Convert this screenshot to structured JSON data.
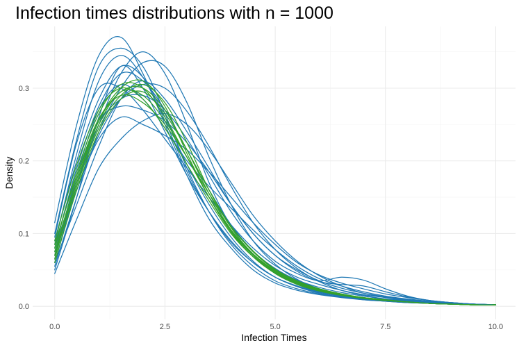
{
  "chart_data": {
    "type": "line",
    "title": "Infection times distributions with  n = 1000",
    "xlabel": "Infection Times",
    "ylabel": "Density",
    "xlim": [
      -0.5,
      10.45
    ],
    "ylim": [
      -0.018,
      0.385
    ],
    "x_ticks": [
      0.0,
      2.5,
      5.0,
      7.5,
      10.0
    ],
    "x_tick_labels": [
      "0.0",
      "2.5",
      "5.0",
      "7.5",
      "10.0"
    ],
    "y_ticks": [
      0.0,
      0.1,
      0.2,
      0.3
    ],
    "y_tick_labels": [
      "0.0",
      "0.1",
      "0.2",
      "0.3"
    ],
    "grid": true,
    "legend": "none",
    "colors": {
      "blue_series": "#1f78b4",
      "green_series": "#33a02c",
      "grid": "#ebebeb"
    },
    "x": [
      0.0,
      0.5,
      1.0,
      1.5,
      2.0,
      2.5,
      3.0,
      3.5,
      4.0,
      4.5,
      5.0,
      5.5,
      6.0,
      6.5,
      7.0,
      7.5,
      8.0,
      8.5,
      9.0,
      9.5,
      10.0
    ],
    "series": [
      {
        "color": "blue",
        "values": [
          0.05,
          0.15,
          0.26,
          0.33,
          0.3,
          0.24,
          0.18,
          0.13,
          0.09,
          0.06,
          0.04,
          0.028,
          0.02,
          0.015,
          0.011,
          0.008,
          0.006,
          0.005,
          0.004,
          0.003,
          0.002
        ]
      },
      {
        "color": "blue",
        "values": [
          0.115,
          0.25,
          0.345,
          0.37,
          0.32,
          0.25,
          0.18,
          0.12,
          0.08,
          0.05,
          0.032,
          0.022,
          0.016,
          0.012,
          0.009,
          0.007,
          0.005,
          0.004,
          0.003,
          0.002,
          0.002
        ]
      },
      {
        "color": "blue",
        "values": [
          0.1,
          0.23,
          0.33,
          0.355,
          0.33,
          0.265,
          0.19,
          0.13,
          0.085,
          0.055,
          0.035,
          0.024,
          0.017,
          0.013,
          0.01,
          0.007,
          0.005,
          0.004,
          0.003,
          0.002,
          0.002
        ]
      },
      {
        "color": "blue",
        "values": [
          0.08,
          0.17,
          0.25,
          0.32,
          0.35,
          0.32,
          0.25,
          0.17,
          0.11,
          0.07,
          0.045,
          0.03,
          0.02,
          0.014,
          0.01,
          0.008,
          0.006,
          0.004,
          0.003,
          0.003,
          0.002
        ]
      },
      {
        "color": "blue",
        "values": [
          0.06,
          0.14,
          0.22,
          0.285,
          0.31,
          0.285,
          0.24,
          0.19,
          0.14,
          0.1,
          0.07,
          0.05,
          0.035,
          0.025,
          0.018,
          0.013,
          0.009,
          0.006,
          0.004,
          0.003,
          0.002
        ]
      },
      {
        "color": "blue",
        "values": [
          0.045,
          0.12,
          0.19,
          0.23,
          0.255,
          0.265,
          0.25,
          0.215,
          0.17,
          0.125,
          0.09,
          0.062,
          0.042,
          0.028,
          0.018,
          0.012,
          0.008,
          0.006,
          0.004,
          0.003,
          0.002
        ]
      },
      {
        "color": "blue",
        "values": [
          0.07,
          0.18,
          0.27,
          0.305,
          0.285,
          0.245,
          0.2,
          0.165,
          0.135,
          0.105,
          0.078,
          0.055,
          0.038,
          0.028,
          0.02,
          0.014,
          0.01,
          0.007,
          0.005,
          0.003,
          0.002
        ]
      },
      {
        "color": "blue",
        "values": [
          0.09,
          0.2,
          0.285,
          0.33,
          0.315,
          0.26,
          0.195,
          0.14,
          0.095,
          0.062,
          0.04,
          0.027,
          0.019,
          0.014,
          0.01,
          0.008,
          0.006,
          0.004,
          0.003,
          0.002,
          0.002
        ]
      },
      {
        "color": "blue",
        "values": [
          0.055,
          0.15,
          0.24,
          0.3,
          0.335,
          0.33,
          0.28,
          0.205,
          0.14,
          0.09,
          0.058,
          0.037,
          0.024,
          0.016,
          0.011,
          0.008,
          0.006,
          0.004,
          0.003,
          0.002,
          0.002
        ]
      },
      {
        "color": "blue",
        "values": [
          0.075,
          0.16,
          0.23,
          0.26,
          0.25,
          0.235,
          0.215,
          0.185,
          0.15,
          0.115,
          0.085,
          0.06,
          0.043,
          0.032,
          0.024,
          0.017,
          0.012,
          0.008,
          0.005,
          0.003,
          0.002
        ]
      },
      {
        "color": "blue",
        "values": [
          0.085,
          0.21,
          0.31,
          0.345,
          0.315,
          0.255,
          0.185,
          0.13,
          0.088,
          0.06,
          0.04,
          0.027,
          0.018,
          0.013,
          0.009,
          0.007,
          0.005,
          0.004,
          0.003,
          0.002,
          0.002
        ]
      },
      {
        "color": "blue",
        "values": [
          0.065,
          0.175,
          0.255,
          0.275,
          0.27,
          0.255,
          0.225,
          0.185,
          0.14,
          0.1,
          0.07,
          0.048,
          0.034,
          0.03,
          0.028,
          0.02,
          0.013,
          0.008,
          0.005,
          0.003,
          0.002
        ]
      },
      {
        "color": "blue",
        "values": [
          0.06,
          0.165,
          0.25,
          0.285,
          0.29,
          0.27,
          0.23,
          0.18,
          0.13,
          0.09,
          0.062,
          0.045,
          0.035,
          0.04,
          0.036,
          0.024,
          0.014,
          0.008,
          0.005,
          0.003,
          0.002
        ]
      },
      {
        "color": "blue",
        "values": [
          0.095,
          0.225,
          0.3,
          0.3,
          0.27,
          0.23,
          0.19,
          0.15,
          0.112,
          0.08,
          0.056,
          0.04,
          0.03,
          0.022,
          0.016,
          0.012,
          0.009,
          0.006,
          0.004,
          0.003,
          0.002
        ]
      },
      {
        "color": "blue",
        "values": [
          0.07,
          0.16,
          0.235,
          0.285,
          0.305,
          0.3,
          0.268,
          0.22,
          0.165,
          0.115,
          0.078,
          0.052,
          0.034,
          0.022,
          0.015,
          0.01,
          0.007,
          0.005,
          0.003,
          0.002,
          0.002
        ]
      },
      {
        "color": "blue",
        "values": [
          0.08,
          0.19,
          0.275,
          0.32,
          0.31,
          0.27,
          0.215,
          0.16,
          0.112,
          0.076,
          0.052,
          0.036,
          0.026,
          0.019,
          0.014,
          0.01,
          0.008,
          0.006,
          0.004,
          0.003,
          0.002
        ]
      },
      {
        "color": "green",
        "values": [
          0.07,
          0.17,
          0.25,
          0.295,
          0.29,
          0.255,
          0.205,
          0.15,
          0.105,
          0.072,
          0.049,
          0.034,
          0.024,
          0.017,
          0.012,
          0.009,
          0.006,
          0.004,
          0.003,
          0.002,
          0.002
        ]
      },
      {
        "color": "green",
        "values": [
          0.08,
          0.185,
          0.265,
          0.305,
          0.3,
          0.26,
          0.205,
          0.15,
          0.103,
          0.07,
          0.047,
          0.032,
          0.022,
          0.016,
          0.011,
          0.008,
          0.006,
          0.004,
          0.003,
          0.002,
          0.002
        ]
      },
      {
        "color": "green",
        "values": [
          0.06,
          0.16,
          0.24,
          0.285,
          0.295,
          0.265,
          0.215,
          0.16,
          0.11,
          0.075,
          0.05,
          0.034,
          0.024,
          0.017,
          0.012,
          0.009,
          0.006,
          0.004,
          0.003,
          0.002,
          0.002
        ]
      },
      {
        "color": "green",
        "values": [
          0.09,
          0.195,
          0.27,
          0.3,
          0.285,
          0.245,
          0.195,
          0.145,
          0.1,
          0.068,
          0.046,
          0.032,
          0.022,
          0.016,
          0.011,
          0.008,
          0.006,
          0.004,
          0.003,
          0.002,
          0.002
        ]
      },
      {
        "color": "green",
        "values": [
          0.075,
          0.175,
          0.255,
          0.295,
          0.3,
          0.27,
          0.215,
          0.155,
          0.105,
          0.07,
          0.046,
          0.031,
          0.021,
          0.015,
          0.011,
          0.008,
          0.006,
          0.004,
          0.003,
          0.002,
          0.002
        ]
      },
      {
        "color": "green",
        "values": [
          0.065,
          0.17,
          0.255,
          0.3,
          0.31,
          0.275,
          0.21,
          0.15,
          0.102,
          0.068,
          0.045,
          0.03,
          0.021,
          0.015,
          0.011,
          0.008,
          0.006,
          0.004,
          0.003,
          0.002,
          0.002
        ]
      },
      {
        "color": "green",
        "values": [
          0.085,
          0.18,
          0.258,
          0.29,
          0.28,
          0.25,
          0.205,
          0.155,
          0.11,
          0.076,
          0.051,
          0.035,
          0.024,
          0.017,
          0.012,
          0.009,
          0.006,
          0.004,
          0.003,
          0.002,
          0.002
        ]
      },
      {
        "color": "green",
        "values": [
          0.07,
          0.165,
          0.245,
          0.29,
          0.305,
          0.28,
          0.225,
          0.16,
          0.108,
          0.072,
          0.048,
          0.033,
          0.023,
          0.016,
          0.011,
          0.008,
          0.006,
          0.004,
          0.003,
          0.002,
          0.002
        ]
      }
    ]
  }
}
